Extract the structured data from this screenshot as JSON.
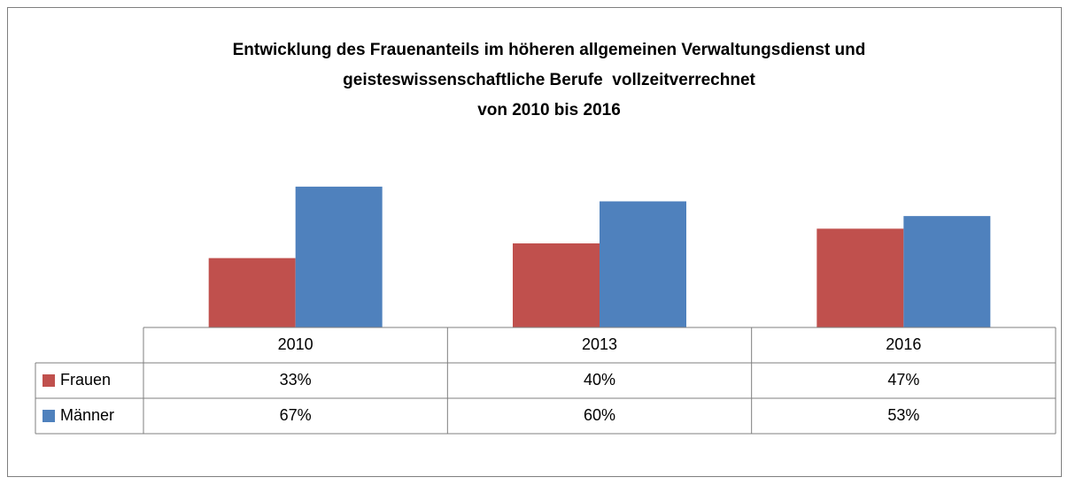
{
  "chart_data": {
    "type": "bar",
    "title": [
      "Entwicklung des Frauenanteils im höheren allgemeinen Verwaltungsdienst und",
      "geisteswissenschaftliche Berufe  vollzeitverrechnet",
      "von 2010 bis 2016"
    ],
    "categories": [
      "2010",
      "2013",
      "2016"
    ],
    "series": [
      {
        "name": "Frauen",
        "color": "#c0504d",
        "values": [
          33,
          40,
          47
        ],
        "value_labels": [
          "33%",
          "40%",
          "47%"
        ]
      },
      {
        "name": "Männer",
        "color": "#4f81bd",
        "values": [
          67,
          60,
          53
        ],
        "value_labels": [
          "67%",
          "60%",
          "53%"
        ]
      }
    ],
    "ylim": [
      0,
      80
    ]
  }
}
